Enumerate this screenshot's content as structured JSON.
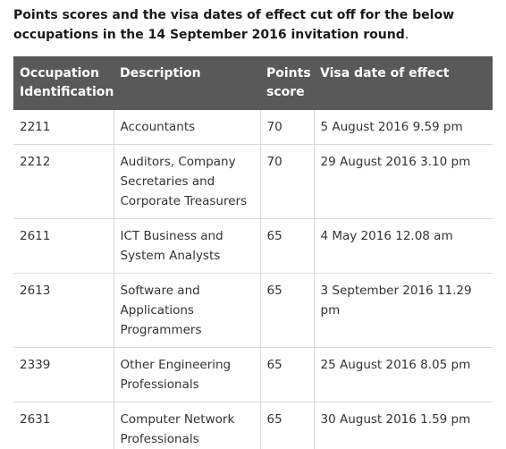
{
  "intro": {
    "text": "Points scores and the visa dates of effect cut off for the below occupations in the 14 September 2016 invitation round",
    "period": "."
  },
  "table": {
    "headers": [
      "Occupation Identification",
      "Description",
      "Points score",
      "Visa date of effect"
    ],
    "rows": [
      [
        "2211",
        "Accountants",
        "70",
        "5 August 2016 9.59 pm"
      ],
      [
        "2212",
        "Auditors, Company Secretaries and Corporate Treasurers",
        "70",
        "29 August 2016 3.10 pm"
      ],
      [
        "2611",
        "ICT Business and System Analysts",
        "65",
        "4 May 2016 12.08 am"
      ],
      [
        "2613",
        "Software and Applications Programmers",
        "65",
        "3 September 2016 11.29 pm"
      ],
      [
        "2339",
        "Other Engineering Professionals",
        "65",
        "25 August 2016 8.05 pm"
      ],
      [
        "2631",
        "Computer Network Professionals",
        "65",
        "30 August 2016 1.59 pm"
      ]
    ]
  }
}
